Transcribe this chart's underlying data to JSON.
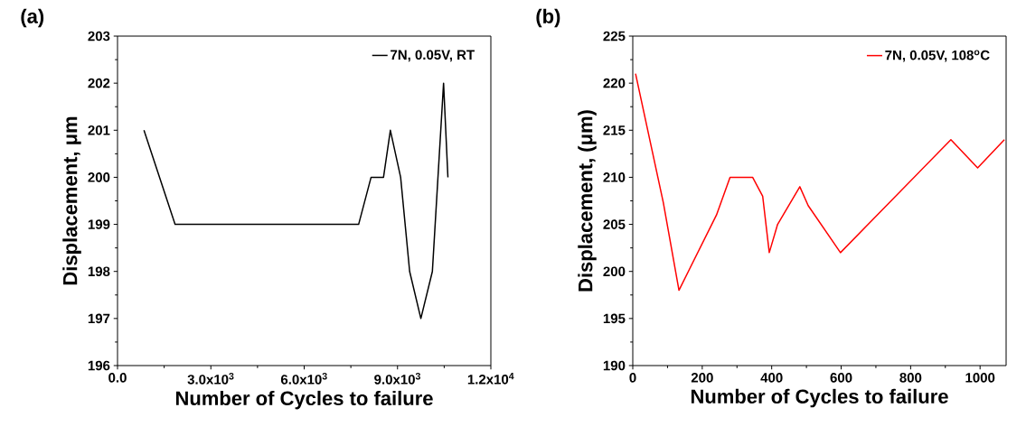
{
  "chart_data": [
    {
      "type": "line",
      "title": "(a)",
      "xlabel": "Number of Cycles to failure",
      "ylabel": "Displacement, μm",
      "xlim": [
        0,
        12000
      ],
      "ylim": [
        196,
        203
      ],
      "xticks": [
        {
          "value": 0,
          "label": "0.0"
        },
        {
          "value": 3000,
          "label": "3.0x10$^{3}$"
        },
        {
          "value": 6000,
          "label": "6.0x10$^{3}$"
        },
        {
          "value": 9000,
          "label": "9.0x10$^{3}$"
        },
        {
          "value": 12000,
          "label": "1.2x10$^{4}$"
        }
      ],
      "yticks": [
        196,
        197,
        198,
        199,
        200,
        201,
        202,
        203
      ],
      "legend": "top right",
      "grid": false,
      "series": [
        {
          "name": "7N, 0.05V, RT",
          "color": "#000000",
          "x": [
            850,
            1850,
            7750,
            8150,
            8550,
            8770,
            9100,
            9390,
            9750,
            10120,
            10480,
            10620
          ],
          "values": [
            201,
            199,
            199,
            200,
            200,
            201,
            200,
            198,
            197,
            198,
            202,
            200
          ]
        }
      ]
    },
    {
      "type": "line",
      "title": "(b)",
      "xlabel": "Number of Cycles to failure",
      "ylabel": "Displacement, (μm)",
      "xlim": [
        0,
        1075
      ],
      "ylim": [
        190,
        225
      ],
      "xticks": [
        0,
        200,
        400,
        600,
        800,
        1000
      ],
      "yticks": [
        190,
        195,
        200,
        205,
        210,
        215,
        220,
        225
      ],
      "legend": "top right",
      "grid": false,
      "series": [
        {
          "name": "7N, 0.05V, 108$^{o}$C",
          "color": "#ff0000",
          "x": [
            8,
            88,
            133,
            241,
            280,
            345,
            374,
            393,
            417,
            481,
            505,
            598,
            916,
            993,
            1070
          ],
          "values": [
            221,
            207.3,
            198,
            206,
            210,
            210,
            208,
            202,
            205,
            209,
            207,
            202,
            214,
            211,
            214
          ]
        }
      ]
    }
  ]
}
